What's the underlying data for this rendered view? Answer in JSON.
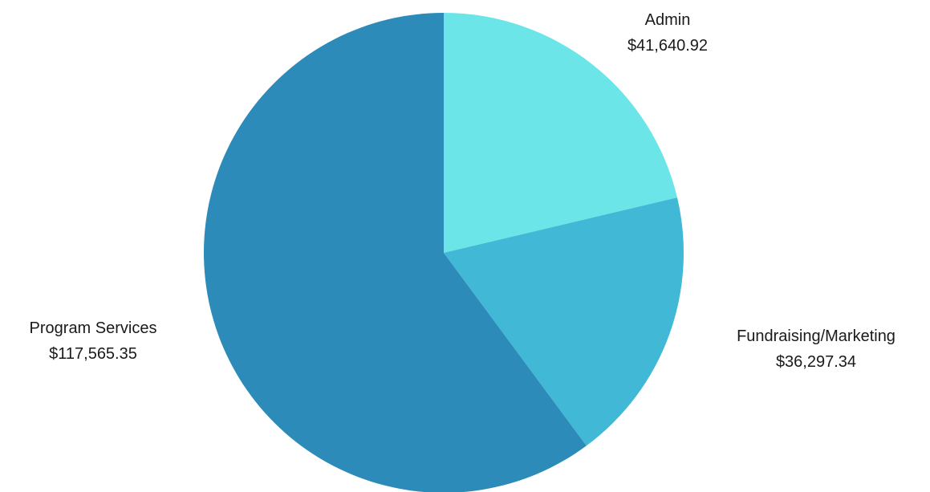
{
  "chart_data": {
    "type": "pie",
    "title": "",
    "start_angle_deg": 0,
    "direction": "clockwise",
    "slices": [
      {
        "name": "Admin",
        "value": 41640.92,
        "value_label": "$41,640.92",
        "color": "#6ce5e8"
      },
      {
        "name": "Fundraising/Marketing",
        "value": 36297.34,
        "value_label": "$36,297.34",
        "color": "#41b8d5"
      },
      {
        "name": "Program Services",
        "value": 117565.35,
        "value_label": "$117,565.35",
        "color": "#2d8bba"
      }
    ]
  }
}
